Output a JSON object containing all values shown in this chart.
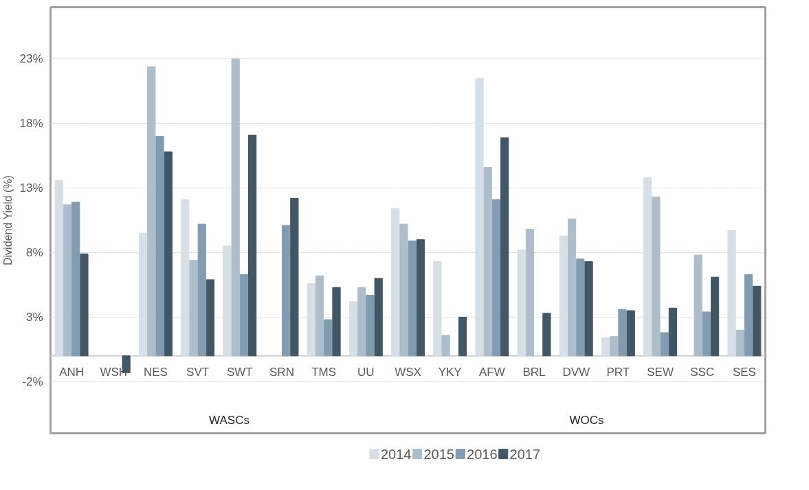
{
  "chart_data": {
    "type": "bar",
    "ylabel": "Dividend Yield (%)",
    "categories": [
      "ANH",
      "WSH",
      "NES",
      "SVT",
      "SWT",
      "SRN",
      "TMS",
      "UU",
      "WSX",
      "YKY",
      "AFW",
      "BRL",
      "DVW",
      "PRT",
      "SEW",
      "SSC",
      "SES"
    ],
    "series": [
      {
        "name": "2014",
        "color": "#d6dfe6",
        "values": [
          13.6,
          null,
          9.5,
          12.1,
          8.5,
          null,
          5.6,
          4.2,
          11.4,
          7.3,
          21.5,
          8.2,
          9.3,
          1.4,
          13.8,
          null,
          9.7
        ]
      },
      {
        "name": "2015",
        "color": "#adbdca",
        "values": [
          11.7,
          null,
          22.4,
          7.4,
          23.0,
          null,
          6.2,
          5.3,
          10.2,
          1.6,
          14.6,
          9.8,
          10.6,
          1.5,
          12.3,
          7.8,
          2.0
        ]
      },
      {
        "name": "2016",
        "color": "#819cb0",
        "values": [
          11.9,
          null,
          17.0,
          10.2,
          6.3,
          10.1,
          2.8,
          4.7,
          8.9,
          null,
          12.1,
          null,
          7.5,
          3.6,
          1.8,
          3.4,
          6.3
        ]
      },
      {
        "name": "2017",
        "color": "#425766",
        "values": [
          7.9,
          -1.3,
          15.8,
          5.9,
          17.1,
          12.2,
          5.3,
          6.0,
          9.0,
          3.0,
          16.9,
          3.3,
          7.3,
          3.5,
          3.7,
          6.1,
          5.4
        ]
      }
    ],
    "ylim": [
      -6,
      27
    ],
    "yticks": [
      {
        "value": -2,
        "label": "-2%"
      },
      {
        "value": 3,
        "label": "3%"
      },
      {
        "value": 8,
        "label": "8%"
      },
      {
        "value": 13,
        "label": "13%"
      },
      {
        "value": 18,
        "label": "18%"
      },
      {
        "value": 23,
        "label": "23%"
      }
    ],
    "annotations": [
      "WASCs",
      "WOCs"
    ],
    "grid": "y",
    "legend": "bottom"
  }
}
